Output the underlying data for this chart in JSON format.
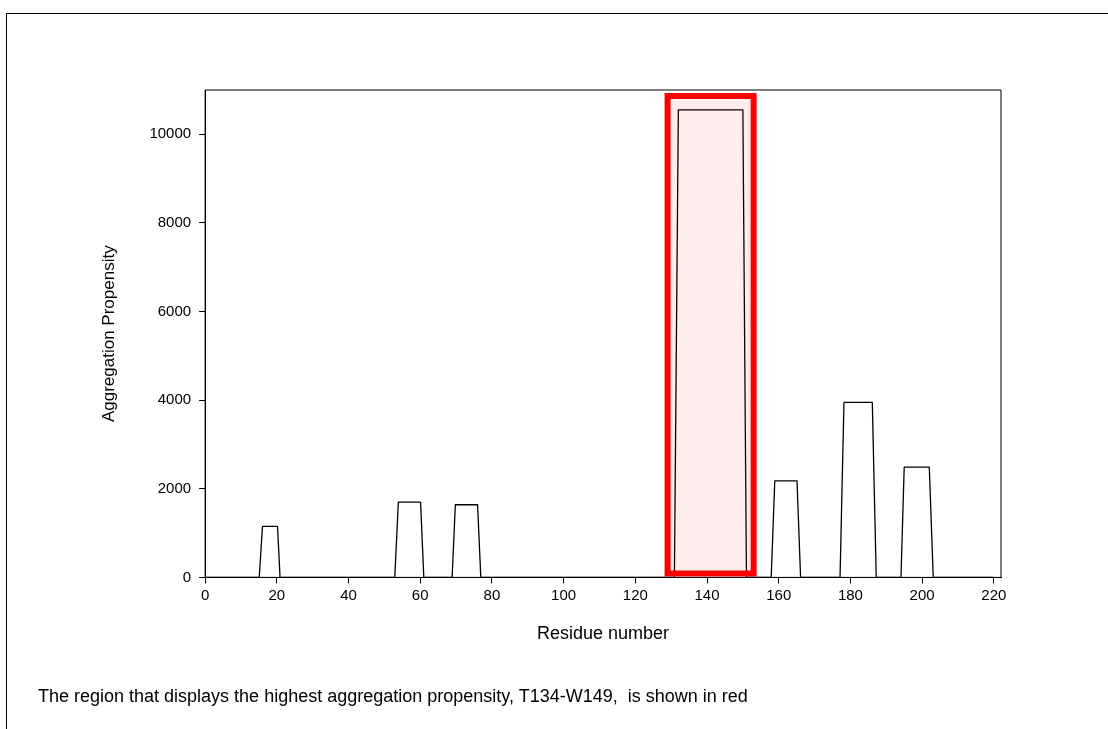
{
  "chart_data": {
    "type": "line",
    "xlabel": "Residue number",
    "ylabel": "Aggregation Propensity",
    "annotations": [
      "The region that displays the highest aggregation propensity, T134-W149,  is shown in red"
    ],
    "x": [
      0,
      15.1,
      16,
      20.2,
      20.9,
      52.9,
      53.9,
      60.1,
      61,
      68.9,
      69.8,
      76,
      76.9,
      130.9,
      132,
      150,
      151,
      157.9,
      158.9,
      165.1,
      166.1,
      177.1,
      178.2,
      186.1,
      187.2,
      194.1,
      195,
      202,
      203.1,
      220
    ],
    "series": [
      {
        "color": "#000000",
        "values": [
          0,
          0,
          1150,
          1150,
          0,
          0,
          1700,
          1700,
          0,
          0,
          1640,
          1640,
          0,
          0,
          10550,
          10550,
          0,
          0,
          2180,
          2180,
          0,
          0,
          3950,
          3950,
          0,
          0,
          2490,
          2490,
          0,
          0
        ]
      }
    ],
    "xlim": [
      0,
      222
    ],
    "xticks": [
      0,
      20,
      40,
      60,
      80,
      100,
      120,
      140,
      160,
      180,
      200,
      220
    ],
    "ylim": [
      0,
      11000
    ],
    "yticks": [
      0,
      2000,
      4000,
      6000,
      8000,
      10000
    ],
    "bands": [
      {
        "axis": "x",
        "from": 129,
        "to": 153,
        "color": "#ff0000"
      }
    ],
    "grid": false,
    "legend": false,
    "marker": "none",
    "line_style": "solid"
  }
}
